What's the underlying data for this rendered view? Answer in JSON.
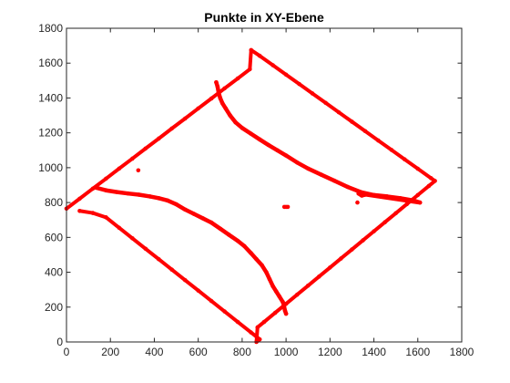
{
  "chart_data": {
    "type": "scatter",
    "title": "Punkte in XY-Ebene",
    "xlabel": "",
    "ylabel": "",
    "xlim": [
      0,
      1800
    ],
    "ylim": [
      0,
      1800
    ],
    "xticks": [
      0,
      200,
      400,
      600,
      800,
      1000,
      1200,
      1400,
      1600,
      1800
    ],
    "yticks": [
      0,
      200,
      400,
      600,
      800,
      1000,
      1200,
      1400,
      1600,
      1800
    ],
    "grid": false,
    "box": true,
    "marker_color": "#ff0000",
    "axis_color": "#262626",
    "series": [
      {
        "values": [
          [
            0,
            765
          ],
          [
            60,
            822
          ],
          [
            120,
            880
          ],
          [
            180,
            937
          ],
          [
            240,
            995
          ],
          [
            300,
            1052
          ],
          [
            360,
            1110
          ],
          [
            420,
            1167
          ],
          [
            480,
            1225
          ],
          [
            540,
            1282
          ],
          [
            600,
            1340
          ],
          [
            660,
            1397
          ],
          [
            720,
            1455
          ],
          [
            780,
            1512
          ],
          [
            835,
            1565
          ],
          [
            841,
            1675
          ],
          [
            880,
            1642
          ],
          [
            940,
            1588
          ],
          [
            1000,
            1534
          ],
          [
            1060,
            1480
          ],
          [
            1120,
            1426
          ],
          [
            1180,
            1372
          ],
          [
            1240,
            1318
          ],
          [
            1300,
            1264
          ],
          [
            1360,
            1210
          ],
          [
            1420,
            1156
          ],
          [
            1480,
            1102
          ],
          [
            1540,
            1048
          ],
          [
            1600,
            994
          ],
          [
            1660,
            940
          ],
          [
            1678,
            924
          ],
          [
            1650,
            895
          ],
          [
            1600,
            843
          ],
          [
            1550,
            791
          ],
          [
            1500,
            739
          ],
          [
            1450,
            687
          ],
          [
            1400,
            635
          ],
          [
            1350,
            583
          ],
          [
            1300,
            531
          ],
          [
            1250,
            479
          ],
          [
            1200,
            427
          ],
          [
            1150,
            375
          ],
          [
            1100,
            323
          ],
          [
            1050,
            271
          ],
          [
            1000,
            219
          ],
          [
            950,
            167
          ],
          [
            900,
            115
          ],
          [
            870,
            84
          ],
          [
            865,
            0
          ],
          [
            880,
            15
          ],
          [
            840,
            55
          ],
          [
            780,
            115
          ],
          [
            720,
            175
          ],
          [
            660,
            235
          ],
          [
            600,
            295
          ],
          [
            540,
            355
          ],
          [
            480,
            415
          ],
          [
            420,
            475
          ],
          [
            360,
            535
          ],
          [
            300,
            595
          ],
          [
            240,
            655
          ],
          [
            180,
            715
          ],
          [
            120,
            740
          ],
          [
            60,
            752
          ]
        ]
      },
      {
        "values": [
          [
            682,
            1490
          ],
          [
            688,
            1465
          ],
          [
            693,
            1430
          ],
          [
            700,
            1400
          ],
          [
            710,
            1370
          ],
          [
            725,
            1340
          ],
          [
            745,
            1300
          ],
          [
            770,
            1260
          ],
          [
            800,
            1228
          ],
          [
            840,
            1195
          ],
          [
            880,
            1162
          ],
          [
            920,
            1130
          ],
          [
            960,
            1100
          ],
          [
            1000,
            1070
          ],
          [
            1050,
            1030
          ],
          [
            1100,
            995
          ],
          [
            1160,
            960
          ],
          [
            1220,
            925
          ],
          [
            1280,
            890
          ],
          [
            1340,
            860
          ],
          [
            1400,
            843
          ],
          [
            1460,
            835
          ],
          [
            1520,
            825
          ],
          [
            1580,
            812
          ],
          [
            1610,
            800
          ],
          [
            1330,
            852
          ],
          [
            1345,
            840
          ],
          [
            1360,
            845
          ]
        ]
      },
      {
        "values": [
          [
            135,
            885
          ],
          [
            180,
            870
          ],
          [
            230,
            860
          ],
          [
            280,
            852
          ],
          [
            330,
            845
          ],
          [
            380,
            835
          ],
          [
            420,
            825
          ],
          [
            460,
            812
          ],
          [
            500,
            790
          ],
          [
            540,
            760
          ],
          [
            580,
            735
          ],
          [
            620,
            710
          ],
          [
            660,
            685
          ],
          [
            700,
            650
          ],
          [
            740,
            615
          ],
          [
            780,
            580
          ],
          [
            810,
            550
          ],
          [
            840,
            510
          ],
          [
            865,
            475
          ],
          [
            890,
            440
          ],
          [
            910,
            400
          ],
          [
            925,
            360
          ],
          [
            940,
            320
          ],
          [
            955,
            290
          ],
          [
            970,
            260
          ],
          [
            985,
            230
          ],
          [
            990,
            210
          ],
          [
            995,
            180
          ],
          [
            1000,
            162
          ]
        ]
      },
      {
        "values": [
          [
            327,
            985
          ],
          [
            992,
            775
          ],
          [
            1000,
            775
          ],
          [
            1008,
            775
          ],
          [
            1325,
            800
          ]
        ]
      }
    ]
  }
}
